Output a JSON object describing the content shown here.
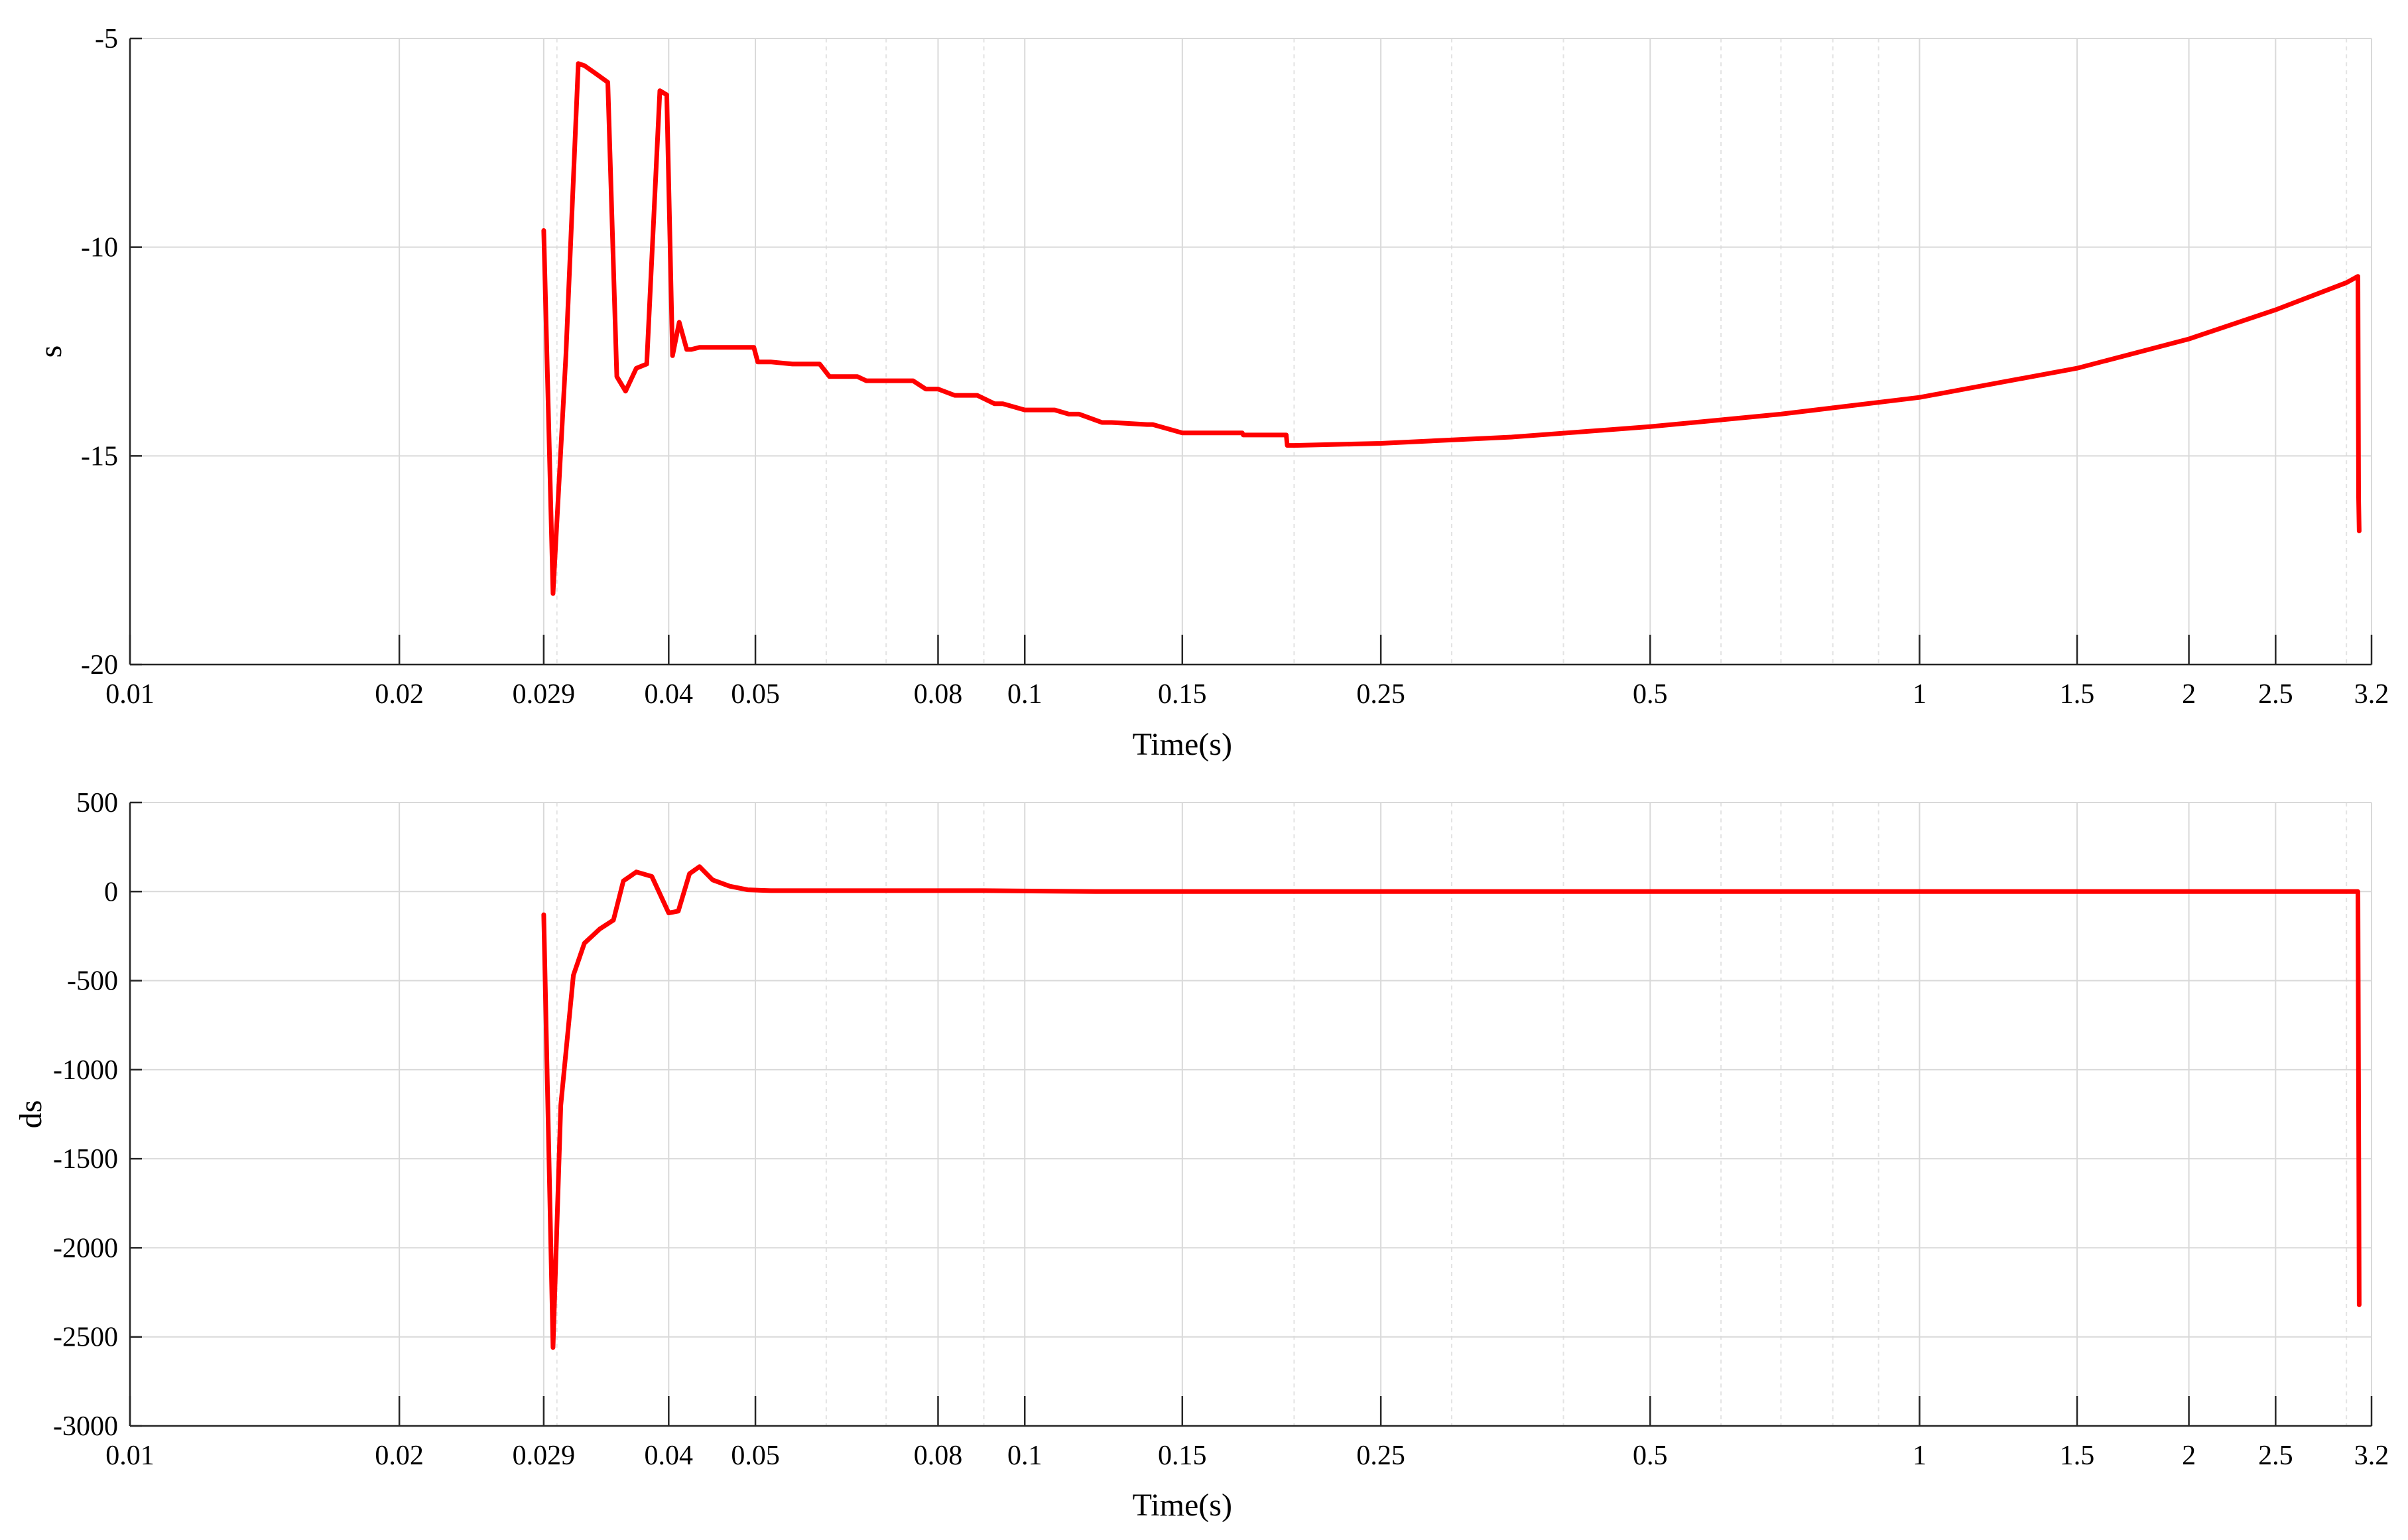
{
  "chart_data": [
    {
      "id": "s",
      "type": "line",
      "xlabel": "Time(s)",
      "ylabel": "s",
      "xscale": "log",
      "xlim": [
        0.01,
        3.2
      ],
      "ylim": [
        -20,
        -5
      ],
      "xticks": [
        0.01,
        0.02,
        0.029,
        0.04,
        0.05,
        0.08,
        0.1,
        0.15,
        0.25,
        0.5,
        1,
        1.5,
        2,
        2.5,
        3.2
      ],
      "xtick_labels": [
        "0.01",
        "0.02",
        "0.029",
        "0.04",
        "0.05",
        "0.08",
        "0.1",
        "0.15",
        "0.25",
        "0.5",
        "1",
        "1.5",
        "2",
        "2.5",
        "3.2"
      ],
      "yticks": [
        -20,
        -15,
        -10,
        -5
      ],
      "ytick_labels": [
        "-20",
        "-15",
        "-10",
        "-5"
      ],
      "grid": true,
      "line_color": "#ff0000",
      "series": [
        {
          "x": [
            0.029,
            0.0297,
            0.0307,
            0.0317,
            0.0322,
            0.0332,
            0.0342,
            0.035,
            0.0358,
            0.0368,
            0.0378,
            0.0391,
            0.0398,
            0.0404,
            0.0411,
            0.0419,
            0.0424,
            0.0433,
            0.044,
            0.0455,
            0.0475,
            0.0498,
            0.0503,
            0.052,
            0.055,
            0.059,
            0.0605,
            0.065,
            0.0665,
            0.072,
            0.075,
            0.0775,
            0.08,
            0.0835,
            0.0865,
            0.0885,
            0.0925,
            0.0945,
            0.1,
            0.108,
            0.112,
            0.115,
            0.122,
            0.125,
            0.137,
            0.139,
            0.15,
            0.1505,
            0.175,
            0.1755,
            0.196,
            0.1965,
            0.2,
            0.25,
            0.35,
            0.5,
            0.7,
            1.0,
            1.5,
            2.0,
            2.5,
            3.0,
            3.09,
            3.095,
            3.1
          ],
          "y": [
            -9.6,
            -18.3,
            -12.6,
            -5.6,
            -5.65,
            -5.85,
            -6.05,
            -13.1,
            -13.45,
            -12.9,
            -12.8,
            -6.25,
            -6.35,
            -12.6,
            -11.8,
            -12.45,
            -12.45,
            -12.4,
            -12.4,
            -12.4,
            -12.4,
            -12.4,
            -12.75,
            -12.75,
            -12.8,
            -12.8,
            -13.1,
            -13.1,
            -13.2,
            -13.2,
            -13.2,
            -13.4,
            -13.4,
            -13.55,
            -13.55,
            -13.55,
            -13.75,
            -13.75,
            -13.9,
            -13.9,
            -14.0,
            -14.0,
            -14.2,
            -14.2,
            -14.25,
            -14.25,
            -14.45,
            -14.45,
            -14.45,
            -14.5,
            -14.5,
            -14.75,
            -14.75,
            -14.7,
            -14.55,
            -14.3,
            -14.0,
            -13.6,
            -12.9,
            -12.2,
            -11.5,
            -10.85,
            -10.7,
            -16.0,
            -16.8
          ]
        }
      ]
    },
    {
      "id": "ds",
      "type": "line",
      "xlabel": "Time(s)",
      "ylabel": "ds",
      "xscale": "log",
      "xlim": [
        0.01,
        3.2
      ],
      "ylim": [
        -3000,
        500
      ],
      "xticks": [
        0.01,
        0.02,
        0.029,
        0.04,
        0.05,
        0.08,
        0.1,
        0.15,
        0.25,
        0.5,
        1,
        1.5,
        2,
        2.5,
        3.2
      ],
      "xtick_labels": [
        "0.01",
        "0.02",
        "0.029",
        "0.04",
        "0.05",
        "0.08",
        "0.1",
        "0.15",
        "0.25",
        "0.5",
        "1",
        "1.5",
        "2",
        "2.5",
        "3.2"
      ],
      "yticks": [
        -3000,
        -2500,
        -2000,
        -1500,
        -1000,
        -500,
        0,
        500
      ],
      "ytick_labels": [
        "-3000",
        "-2500",
        "-2000",
        "-1500",
        "-1000",
        "-500",
        "0",
        "500"
      ],
      "grid": true,
      "line_color": "#ff0000",
      "series": [
        {
          "x": [
            0.029,
            0.0297,
            0.0303,
            0.0313,
            0.0322,
            0.0335,
            0.0347,
            0.0356,
            0.0368,
            0.0383,
            0.04,
            0.041,
            0.0422,
            0.0433,
            0.0448,
            0.0468,
            0.049,
            0.052,
            0.058,
            0.065,
            0.075,
            0.09,
            0.12,
            0.2,
            0.5,
            1.0,
            2.0,
            3.0,
            3.09,
            3.095,
            3.1
          ],
          "y": [
            -130,
            -2560,
            -1200,
            -470,
            -290,
            -210,
            -160,
            60,
            110,
            85,
            -120,
            -110,
            100,
            140,
            65,
            30,
            10,
            5,
            5,
            5,
            5,
            5,
            0,
            0,
            0,
            0,
            0,
            0,
            0,
            -1200,
            -2320
          ]
        }
      ]
    }
  ]
}
